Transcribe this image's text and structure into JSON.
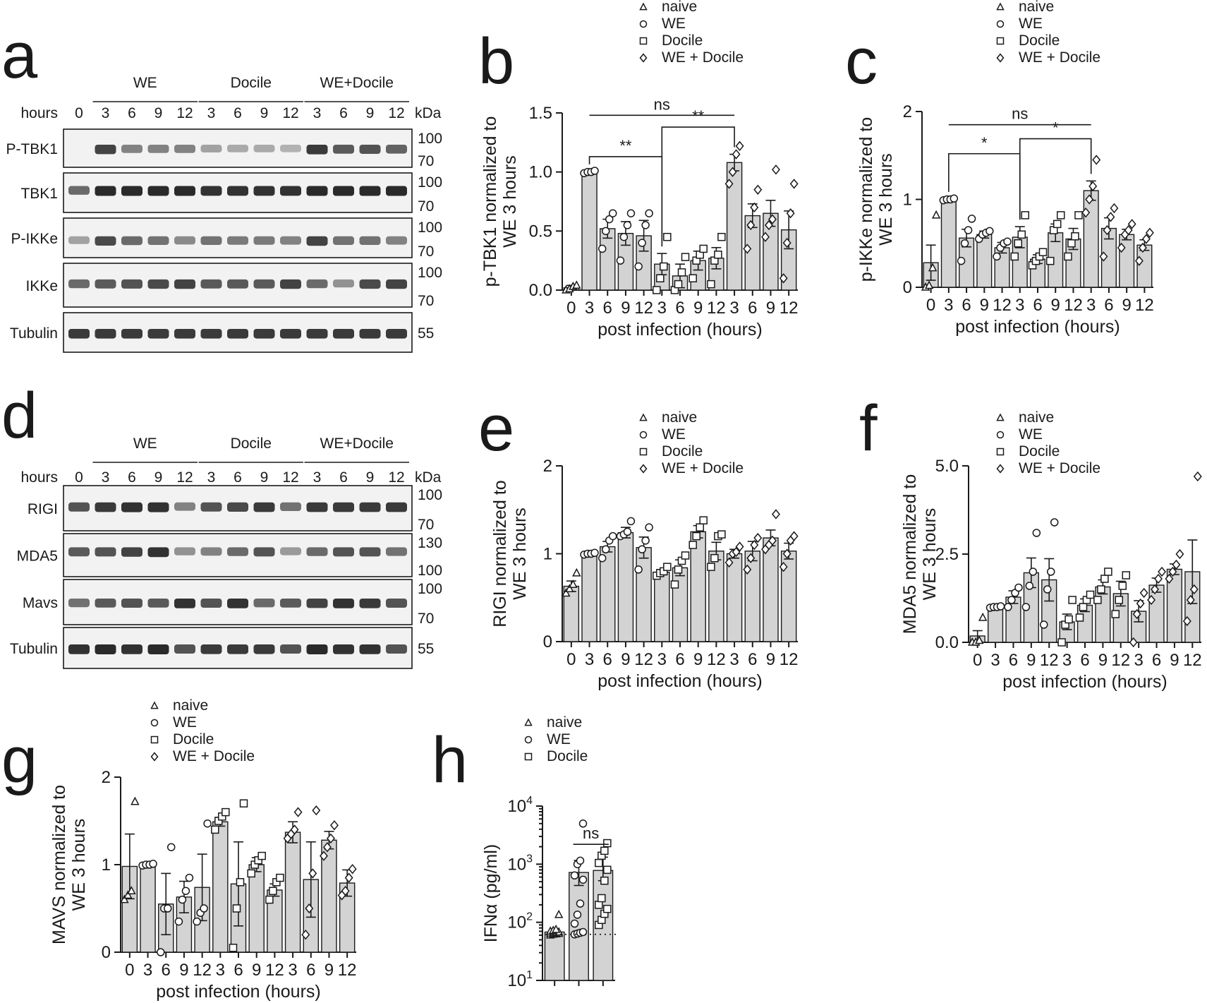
{
  "colors": {
    "bar_fill": "#d3d3d3",
    "ink": "#1a1a1a",
    "blot_bg": "#f2f2f2",
    "band": "#2a2a2a"
  },
  "legend_entries": [
    "naive",
    "WE",
    "Docile",
    "WE + Docile"
  ],
  "legend_markers": [
    "triangle",
    "circle",
    "square",
    "diamond"
  ],
  "xlabel_common": "post infection (hours)",
  "blots": [
    {
      "letter": "a",
      "groups": [
        "WE",
        "Docile",
        "WE+Docile"
      ],
      "hours_label": "hours",
      "hours": [
        "0",
        "3",
        "6",
        "9",
        "12",
        "3",
        "6",
        "9",
        "12",
        "3",
        "6",
        "9",
        "12"
      ],
      "kda_label": "kDa",
      "rows": [
        {
          "label": "P-TBK1",
          "markers": [
            "100",
            "70"
          ],
          "intensities": [
            0,
            0.85,
            0.45,
            0.45,
            0.45,
            0.25,
            0.2,
            0.2,
            0.15,
            0.9,
            0.7,
            0.75,
            0.65
          ]
        },
        {
          "label": "TBK1",
          "markers": [
            "100",
            "70"
          ],
          "intensities": [
            0.6,
            1,
            1,
            1,
            1,
            0.95,
            0.95,
            0.95,
            0.95,
            1,
            1,
            1,
            1
          ]
        },
        {
          "label": "P-IKKe",
          "markers": [
            "100",
            "70"
          ],
          "intensities": [
            0.25,
            0.8,
            0.6,
            0.55,
            0.4,
            0.55,
            0.5,
            0.5,
            0.45,
            0.85,
            0.55,
            0.55,
            0.45
          ]
        },
        {
          "label": "IKKe",
          "markers": [
            "100",
            "70"
          ],
          "intensities": [
            0.6,
            0.7,
            0.75,
            0.8,
            0.85,
            0.7,
            0.7,
            0.7,
            0.85,
            0.6,
            0.35,
            0.8,
            0.85
          ]
        },
        {
          "label": "Tubulin",
          "markers": [
            "55"
          ],
          "intensities": [
            0.9,
            0.9,
            0.9,
            0.9,
            0.9,
            0.9,
            0.9,
            0.9,
            0.9,
            0.9,
            0.9,
            0.9,
            0.9
          ]
        }
      ]
    },
    {
      "letter": "d",
      "groups": [
        "WE",
        "Docile",
        "WE+Docile"
      ],
      "hours_label": "hours",
      "hours": [
        "0",
        "3",
        "6",
        "9",
        "12",
        "3",
        "6",
        "9",
        "12",
        "3",
        "6",
        "9",
        "12"
      ],
      "kda_label": "kDa",
      "rows": [
        {
          "label": "RIGI",
          "markers": [
            "100",
            "70"
          ],
          "intensities": [
            0.75,
            0.9,
            0.95,
            0.95,
            0.45,
            0.75,
            0.8,
            0.9,
            0.55,
            0.9,
            0.9,
            0.9,
            0.9
          ]
        },
        {
          "label": "MDA5",
          "markers": [
            "130",
            "100"
          ],
          "intensities": [
            0.7,
            0.75,
            0.85,
            0.95,
            0.35,
            0.45,
            0.6,
            0.75,
            0.3,
            0.6,
            0.75,
            0.75,
            0.55
          ]
        },
        {
          "label": "Mavs",
          "markers": [
            "100",
            "70"
          ],
          "intensities": [
            0.55,
            0.7,
            0.75,
            0.7,
            0.95,
            0.75,
            0.95,
            0.6,
            0.7,
            0.85,
            0.95,
            0.9,
            0.75
          ]
        },
        {
          "label": "Tubulin",
          "markers": [
            "55"
          ],
          "intensities": [
            0.95,
            1,
            0.95,
            1,
            0.75,
            0.9,
            0.9,
            0.9,
            0.75,
            1,
            0.95,
            0.95,
            0.75
          ]
        }
      ]
    }
  ],
  "chart_data": [
    {
      "letter": "b",
      "type": "bar",
      "ylabel": [
        "p-TBK1 normalized to",
        "WE 3 hours"
      ],
      "xlabel": "post infection (hours)",
      "ylim": [
        0,
        1.5
      ],
      "yticks": [
        0,
        0.5,
        1,
        1.5
      ],
      "ytick_labels": [
        "0.0",
        "0.5",
        "1.0",
        "1.5"
      ],
      "categories": [
        "0",
        "3",
        "6",
        "9",
        "12",
        "3",
        "6",
        "9",
        "12",
        "3",
        "6",
        "9",
        "12"
      ],
      "groups": [
        "naive",
        "WE",
        "WE",
        "WE",
        "WE",
        "Docile",
        "Docile",
        "Docile",
        "Docile",
        "WE + Docile",
        "WE + Docile",
        "WE + Docile",
        "WE + Docile"
      ],
      "values": [
        0.02,
        1.0,
        0.52,
        0.48,
        0.46,
        0.22,
        0.12,
        0.25,
        0.27,
        1.08,
        0.63,
        0.65,
        0.51
      ],
      "sem": [
        0.02,
        0.005,
        0.08,
        0.1,
        0.13,
        0.09,
        0.1,
        0.08,
        0.09,
        0.07,
        0.1,
        0.11,
        0.16
      ],
      "points": [
        [
          0.0,
          0.01,
          0.03,
          0.04
        ],
        [
          0.99,
          1.0,
          1.0,
          1.01
        ],
        [
          0.35,
          0.5,
          0.6,
          0.65
        ],
        [
          0.25,
          0.45,
          0.55,
          0.65
        ],
        [
          0.2,
          0.4,
          0.55,
          0.65
        ],
        [
          0.0,
          0.1,
          0.2,
          0.45
        ],
        [
          0.0,
          0.05,
          0.15,
          0.28
        ],
        [
          0.1,
          0.25,
          0.3,
          0.35
        ],
        [
          0.05,
          0.25,
          0.3,
          0.45
        ],
        [
          0.9,
          1.0,
          1.15,
          1.22
        ],
        [
          0.35,
          0.55,
          0.7,
          0.85
        ],
        [
          0.45,
          0.55,
          0.6,
          1.02
        ],
        [
          0.1,
          0.4,
          0.65,
          0.9
        ]
      ],
      "brackets": [
        {
          "from": 1,
          "to": 5,
          "y": 1.13,
          "label": "**"
        },
        {
          "from": 5,
          "to": 9,
          "y": 1.38,
          "label": "**"
        },
        {
          "from": 1,
          "to": 9,
          "y": 1.48,
          "label": "ns"
        }
      ]
    },
    {
      "letter": "c",
      "type": "bar",
      "ylabel": [
        "p-IKKe normalized to",
        "WE 3 hours"
      ],
      "xlabel": "post infection (hours)",
      "ylim": [
        0,
        2
      ],
      "yticks": [
        0,
        1,
        2
      ],
      "ytick_labels": [
        "0",
        "1",
        "2"
      ],
      "categories": [
        "0",
        "3",
        "6",
        "9",
        "12",
        "3",
        "6",
        "9",
        "12",
        "3",
        "6",
        "9",
        "12"
      ],
      "groups": [
        "naive",
        "WE",
        "WE",
        "WE",
        "WE",
        "Docile",
        "Docile",
        "Docile",
        "Docile",
        "WE + Docile",
        "WE + Docile",
        "WE + Docile",
        "WE + Docile"
      ],
      "values": [
        0.28,
        1.0,
        0.56,
        0.6,
        0.45,
        0.57,
        0.32,
        0.62,
        0.55,
        1.1,
        0.67,
        0.6,
        0.48
      ],
      "sem": [
        0.2,
        0.005,
        0.1,
        0.04,
        0.06,
        0.12,
        0.05,
        0.1,
        0.12,
        0.11,
        0.12,
        0.06,
        0.06
      ],
      "points": [
        [
          0.0,
          0.02,
          0.22,
          0.82
        ],
        [
          0.99,
          1.0,
          1.0,
          1.01
        ],
        [
          0.3,
          0.5,
          0.65,
          0.78
        ],
        [
          0.55,
          0.6,
          0.62,
          0.64
        ],
        [
          0.35,
          0.45,
          0.5,
          0.52
        ],
        [
          0.35,
          0.5,
          0.6,
          0.82
        ],
        [
          0.25,
          0.3,
          0.35,
          0.4
        ],
        [
          0.3,
          0.65,
          0.72,
          0.82
        ],
        [
          0.35,
          0.5,
          0.58,
          0.82
        ],
        [
          0.85,
          1.0,
          1.15,
          1.45
        ],
        [
          0.35,
          0.65,
          0.8,
          0.9
        ],
        [
          0.45,
          0.6,
          0.65,
          0.72
        ],
        [
          0.3,
          0.45,
          0.55,
          0.62
        ]
      ],
      "brackets": [
        {
          "from": 1,
          "to": 5,
          "y": 1.52,
          "label": "*"
        },
        {
          "from": 5,
          "to": 9,
          "y": 1.69,
          "label": "*"
        },
        {
          "from": 1,
          "to": 9,
          "y": 1.85,
          "label": "ns"
        }
      ]
    },
    {
      "letter": "e",
      "type": "bar",
      "ylabel": [
        "RIGI normalized to",
        "WE 3 hours"
      ],
      "xlabel": "post infection (hours)",
      "ylim": [
        0,
        2
      ],
      "yticks": [
        0,
        1,
        2
      ],
      "ytick_labels": [
        "0",
        "1",
        "2"
      ],
      "categories": [
        "0",
        "3",
        "6",
        "9",
        "12",
        "3",
        "6",
        "9",
        "12",
        "3",
        "6",
        "9",
        "12"
      ],
      "groups": [
        "naive",
        "WE",
        "WE",
        "WE",
        "WE",
        "Docile",
        "Docile",
        "Docile",
        "Docile",
        "WE + Docile",
        "WE + Docile",
        "WE + Docile",
        "WE + Docile"
      ],
      "values": [
        0.63,
        1.0,
        1.08,
        1.24,
        1.07,
        0.79,
        0.84,
        1.25,
        1.03,
        1.0,
        1.03,
        1.18,
        1.03
      ],
      "sem": [
        0.06,
        0.005,
        0.06,
        0.06,
        0.12,
        0.03,
        0.09,
        0.07,
        0.1,
        0.05,
        0.11,
        0.09,
        0.09
      ],
      "points": [
        [
          0.55,
          0.6,
          0.65,
          0.78
        ],
        [
          0.99,
          1.0,
          1.0,
          1.01
        ],
        [
          0.95,
          1.05,
          1.15,
          1.2
        ],
        [
          1.2,
          1.22,
          1.25,
          1.37
        ],
        [
          0.82,
          1.05,
          1.15,
          1.3
        ],
        [
          0.75,
          0.78,
          0.8,
          0.85
        ],
        [
          0.65,
          0.82,
          0.92,
          0.98
        ],
        [
          1.1,
          1.2,
          1.3,
          1.38
        ],
        [
          0.85,
          0.95,
          1.2,
          1.22
        ],
        [
          0.9,
          1.0,
          1.02,
          1.08
        ],
        [
          0.82,
          0.95,
          1.1,
          1.18
        ],
        [
          1.05,
          1.1,
          1.15,
          1.45
        ],
        [
          0.85,
          1.0,
          1.15,
          1.2
        ]
      ],
      "brackets": []
    },
    {
      "letter": "f",
      "type": "bar",
      "ylabel": [
        "MDA5 normalized to",
        "WE 3 hours"
      ],
      "xlabel": "post infection (hours)",
      "ylim": [
        0,
        5
      ],
      "yticks": [
        0,
        2.5,
        5
      ],
      "ytick_labels": [
        "0.0",
        "2.5",
        "5.0"
      ],
      "categories": [
        "0",
        "3",
        "6",
        "9",
        "12",
        "3",
        "6",
        "9",
        "12",
        "3",
        "6",
        "9",
        "12"
      ],
      "groups": [
        "naive",
        "WE",
        "WE",
        "WE",
        "WE",
        "Docile",
        "Docile",
        "Docile",
        "Docile",
        "WE + Docile",
        "WE + Docile",
        "WE + Docile",
        "WE + Docile"
      ],
      "values": [
        0.18,
        1.0,
        1.28,
        1.97,
        1.77,
        0.58,
        1.05,
        1.57,
        1.38,
        0.88,
        1.62,
        2.07,
        2.0
      ],
      "sem": [
        0.15,
        0.01,
        0.18,
        0.42,
        0.6,
        0.22,
        0.18,
        0.2,
        0.35,
        0.3,
        0.2,
        0.15,
        0.9
      ],
      "points": [
        [
          0.0,
          0.0,
          0.05,
          0.7
        ],
        [
          0.98,
          1.0,
          1.0,
          1.02
        ],
        [
          1.0,
          1.2,
          1.4,
          1.55
        ],
        [
          1.0,
          1.6,
          2.0,
          3.1
        ],
        [
          0.5,
          1.5,
          2.0,
          3.4
        ],
        [
          0.0,
          0.5,
          0.65,
          1.2
        ],
        [
          0.7,
          1.0,
          1.2,
          1.35
        ],
        [
          1.2,
          1.5,
          1.8,
          2.0
        ],
        [
          0.8,
          1.2,
          1.6,
          1.9
        ],
        [
          0.0,
          0.8,
          1.1,
          1.4
        ],
        [
          1.2,
          1.5,
          1.8,
          2.0
        ],
        [
          1.8,
          2.0,
          2.2,
          2.5
        ],
        [
          0.6,
          1.2,
          1.5,
          4.7
        ]
      ],
      "brackets": []
    },
    {
      "letter": "g",
      "type": "bar",
      "ylabel": [
        "MAVS normalized to",
        "WE 3 hours"
      ],
      "xlabel": "post infection (hours)",
      "ylim": [
        0,
        2
      ],
      "yticks": [
        0,
        1,
        2
      ],
      "ytick_labels": [
        "0",
        "1",
        "2"
      ],
      "categories": [
        "0",
        "3",
        "6",
        "9",
        "12",
        "3",
        "6",
        "9",
        "12",
        "3",
        "6",
        "9",
        "12"
      ],
      "groups": [
        "naive",
        "WE",
        "WE",
        "WE",
        "WE",
        "Docile",
        "Docile",
        "Docile",
        "Docile",
        "WE + Docile",
        "WE + Docile",
        "WE + Docile",
        "WE + Docile"
      ],
      "values": [
        0.98,
        1.0,
        0.55,
        0.63,
        0.74,
        1.49,
        0.78,
        1.0,
        0.71,
        1.37,
        0.83,
        1.28,
        0.79
      ],
      "sem": [
        0.37,
        0.01,
        0.35,
        0.18,
        0.38,
        0.05,
        0.48,
        0.08,
        0.07,
        0.12,
        0.43,
        0.1,
        0.15
      ],
      "points": [
        [
          0.6,
          0.65,
          0.7,
          1.72
        ],
        [
          0.99,
          1.0,
          1.0,
          1.01
        ],
        [
          0.0,
          0.5,
          0.5,
          1.2
        ],
        [
          0.35,
          0.6,
          0.7,
          0.85
        ],
        [
          0.35,
          0.45,
          0.5,
          1.47
        ],
        [
          1.4,
          1.5,
          1.55,
          1.6
        ],
        [
          0.05,
          0.5,
          0.8,
          1.7
        ],
        [
          0.9,
          1.0,
          1.05,
          1.1
        ],
        [
          0.6,
          0.7,
          0.8,
          0.85
        ],
        [
          1.3,
          1.35,
          1.4,
          1.6
        ],
        [
          0.2,
          0.5,
          0.9,
          1.62
        ],
        [
          1.1,
          1.2,
          1.3,
          1.45
        ],
        [
          0.65,
          0.7,
          0.85,
          0.95
        ]
      ],
      "brackets": []
    },
    {
      "letter": "h",
      "type": "bar",
      "scale": "log",
      "ylabel": [
        "IFNα (pg/ml)"
      ],
      "xlabel": "",
      "ylim": [
        10,
        10000
      ],
      "yticks": [
        10,
        100,
        1000,
        10000
      ],
      "ytick_base": "10",
      "ytick_exponents": [
        "1",
        "2",
        "3",
        "4"
      ],
      "categories": [
        "",
        "",
        ""
      ],
      "groups": [
        "naive",
        "WE",
        "Docile"
      ],
      "values": [
        68,
        720,
        780
      ],
      "sem_bounds": [
        [
          62,
          74
        ],
        [
          430,
          1160
        ],
        [
          520,
          1320
        ]
      ],
      "points": [
        [
          60,
          62,
          63,
          64,
          65,
          66,
          67,
          68,
          70,
          72,
          75,
          135
        ],
        [
          62,
          64,
          66,
          68,
          95,
          135,
          210,
          540,
          640,
          1000,
          1150,
          5000
        ],
        [
          90,
          110,
          140,
          170,
          200,
          260,
          520,
          800,
          1050,
          1400,
          1700,
          2300
        ]
      ],
      "detection_limit": 62,
      "brackets": [
        {
          "from": 1,
          "to": 2,
          "y": 2200,
          "label": "ns"
        }
      ]
    }
  ]
}
